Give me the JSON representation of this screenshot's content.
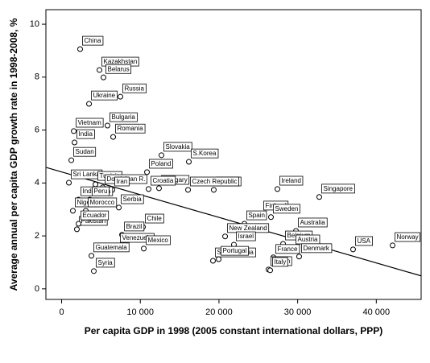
{
  "chart_data": {
    "type": "scatter",
    "x_label": "Per capita GDP in 1998 (2005 constant international dollars, PPP)",
    "y_label": "Average annual per capita GDP growth rate in 1998-2008, %",
    "xlim": [
      -2000,
      45700
    ],
    "ylim": [
      -0.4,
      10.55
    ],
    "xticks": [
      0,
      {
        "value": 10000,
        "label": "10 000"
      },
      {
        "value": 20000,
        "label": "20 000"
      },
      {
        "value": 30000,
        "label": "30 000"
      },
      {
        "value": 40000,
        "label": "40 000"
      }
    ],
    "yticks": [
      0,
      2,
      4,
      6,
      8,
      10
    ],
    "fit_line": {
      "x": [
        -2000,
        45700
      ],
      "y": [
        4.59,
        0.49
      ]
    },
    "points": [
      {
        "label": "China",
        "x": 2350,
        "y": 9.06
      },
      {
        "label": "Kazakhstan",
        "x": 4810,
        "y": 8.27
      },
      {
        "label": "Belarus",
        "x": 5320,
        "y": 7.99
      },
      {
        "label": "Russia",
        "x": 7470,
        "y": 7.26
      },
      {
        "label": "Ukraine",
        "x": 3480,
        "y": 6.99
      },
      {
        "label": "Bulgaria",
        "x": 5830,
        "y": 6.17
      },
      {
        "label": "Vietnam",
        "x": 1540,
        "y": 5.96
      },
      {
        "label": "Romania",
        "x": 6550,
        "y": 5.74
      },
      {
        "label": "India",
        "x": 1640,
        "y": 5.53
      },
      {
        "label": "Sudan",
        "x": 1230,
        "y": 4.86
      },
      {
        "label": "Slovakia",
        "x": 12690,
        "y": 5.05
      },
      {
        "label": "Poland",
        "x": 10850,
        "y": 4.41
      },
      {
        "label": "S.Korea",
        "x": 16170,
        "y": 4.8
      },
      {
        "label": "Sri Lanka",
        "x": 920,
        "y": 4.01
      },
      {
        "label": "Tunisia",
        "x": 4300,
        "y": 3.95
      },
      {
        "label": "Dominican R.",
        "x": 5220,
        "y": 3.83
      },
      {
        "label": "Hungary",
        "x": 12380,
        "y": 3.8
      },
      {
        "label": "Greece",
        "x": 19340,
        "y": 3.74
      },
      {
        "label": "Ireland",
        "x": 27430,
        "y": 3.77
      },
      {
        "label": "Singapore",
        "x": 32750,
        "y": 3.47
      },
      {
        "label": "Iran",
        "x": 6450,
        "y": 3.74
      },
      {
        "label": "Croatia",
        "x": 11050,
        "y": 3.77
      },
      {
        "label": "Czech Republic",
        "x": 16070,
        "y": 3.74
      },
      {
        "label": "Indonesia",
        "x": 2150,
        "y": 3.37
      },
      {
        "label": "Peru",
        "x": 3580,
        "y": 3.37
      },
      {
        "label": "Serbia",
        "x": 7270,
        "y": 3.07
      },
      {
        "label": "Nigeria",
        "x": 1430,
        "y": 2.95
      },
      {
        "label": "Morocco",
        "x": 3070,
        "y": 2.95
      },
      {
        "label": "Finland",
        "x": 25380,
        "y": 2.83
      },
      {
        "label": "Sweden",
        "x": 26610,
        "y": 2.71
      },
      {
        "label": "Spain",
        "x": 23230,
        "y": 2.46
      },
      {
        "label": "Pakistan",
        "x": 1940,
        "y": 2.25
      },
      {
        "label": "Ecuador",
        "x": 2150,
        "y": 2.46
      },
      {
        "label": "Chile",
        "x": 10340,
        "y": 2.34
      },
      {
        "label": "Brazil",
        "x": 7680,
        "y": 2.04
      },
      {
        "label": "New Zealand",
        "x": 20780,
        "y": 1.98
      },
      {
        "label": "Australia",
        "x": 29790,
        "y": 2.19
      },
      {
        "label": "Israel",
        "x": 21900,
        "y": 1.67
      },
      {
        "label": "Belgium",
        "x": 28150,
        "y": 1.7
      },
      {
        "label": "Austria",
        "x": 29480,
        "y": 1.55
      },
      {
        "label": "USA",
        "x": 37050,
        "y": 1.49
      },
      {
        "label": "Norway",
        "x": 42070,
        "y": 1.64
      },
      {
        "label": "Venezuela",
        "x": 7160,
        "y": 1.61
      },
      {
        "label": "Mexico",
        "x": 10440,
        "y": 1.52
      },
      {
        "label": "Saudi Arabia",
        "x": 19240,
        "y": 1.06
      },
      {
        "label": "Portugal",
        "x": 19960,
        "y": 1.12
      },
      {
        "label": "France",
        "x": 26920,
        "y": 1.19
      },
      {
        "label": "Denmark",
        "x": 30190,
        "y": 1.22
      },
      {
        "label": "Japan",
        "x": 26300,
        "y": 0.73
      },
      {
        "label": "Italy",
        "x": 26510,
        "y": 0.7
      },
      {
        "label": "Guatemala",
        "x": 3790,
        "y": 1.25
      },
      {
        "label": "Syria",
        "x": 4090,
        "y": 0.67
      }
    ]
  }
}
